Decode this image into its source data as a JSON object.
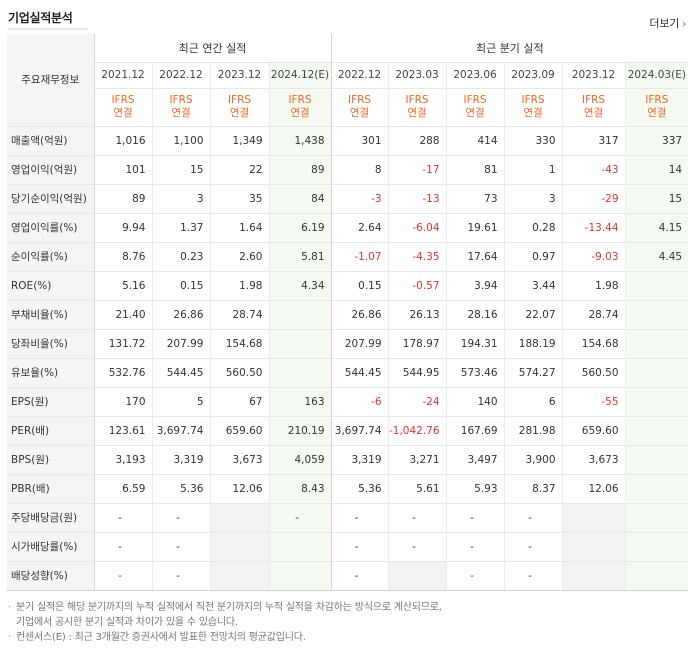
{
  "header": {
    "title": "기업실적분석",
    "more_label": "더보기"
  },
  "table": {
    "corner_label": "주요재무정보",
    "group_annual": "최근 연간 실적",
    "group_quarter": "최근 분기 실적",
    "periods": [
      "2021.12",
      "2022.12",
      "2023.12",
      "2024.12(E)",
      "2022.12",
      "2023.03",
      "2023.06",
      "2023.09",
      "2023.12",
      "2024.03(E)"
    ],
    "ifrs_top": "IFRS",
    "ifrs_bottom": "연결",
    "rows": [
      {
        "label": "매출액(억원)",
        "values": [
          "1,016",
          "1,100",
          "1,349",
          "1,438",
          "301",
          "288",
          "414",
          "330",
          "317",
          "337"
        ]
      },
      {
        "label": "영업이익(억원)",
        "values": [
          "101",
          "15",
          "22",
          "89",
          "8",
          "-17",
          "81",
          "1",
          "-43",
          "14"
        ]
      },
      {
        "label": "당기순이익(억원)",
        "values": [
          "89",
          "3",
          "35",
          "84",
          "-3",
          "-13",
          "73",
          "3",
          "-29",
          "15"
        ]
      },
      {
        "label": "영업이익률(%)",
        "values": [
          "9.94",
          "1.37",
          "1.64",
          "6.19",
          "2.64",
          "-6.04",
          "19.61",
          "0.28",
          "-13.44",
          "4.15"
        ]
      },
      {
        "label": "순이익률(%)",
        "values": [
          "8.76",
          "0.23",
          "2.60",
          "5.81",
          "-1.07",
          "-4.35",
          "17.64",
          "0.97",
          "-9.03",
          "4.45"
        ]
      },
      {
        "label": "ROE(%)",
        "values": [
          "5.16",
          "0.15",
          "1.98",
          "4.34",
          "0.15",
          "-0.57",
          "3.94",
          "3.44",
          "1.98",
          ""
        ]
      },
      {
        "label": "부채비율(%)",
        "values": [
          "21.40",
          "26.86",
          "28.74",
          "",
          "26.86",
          "26.13",
          "28.16",
          "22.07",
          "28.74",
          ""
        ]
      },
      {
        "label": "당좌비율(%)",
        "values": [
          "131.72",
          "207.99",
          "154.68",
          "",
          "207.99",
          "178.97",
          "194.31",
          "188.19",
          "154.68",
          ""
        ]
      },
      {
        "label": "유보율(%)",
        "values": [
          "532.76",
          "544.45",
          "560.50",
          "",
          "544.45",
          "544.95",
          "573.46",
          "574.27",
          "560.50",
          ""
        ]
      },
      {
        "label": "EPS(원)",
        "values": [
          "170",
          "5",
          "67",
          "163",
          "-6",
          "-24",
          "140",
          "6",
          "-55",
          ""
        ]
      },
      {
        "label": "PER(배)",
        "values": [
          "123.61",
          "3,697.74",
          "659.60",
          "210.19",
          "3,697.74",
          "-1,042.76",
          "167.69",
          "281.98",
          "659.60",
          ""
        ]
      },
      {
        "label": "BPS(원)",
        "values": [
          "3,193",
          "3,319",
          "3,673",
          "4,059",
          "3,319",
          "3,271",
          "3,497",
          "3,900",
          "3,673",
          ""
        ]
      },
      {
        "label": "PBR(배)",
        "values": [
          "6.59",
          "5.36",
          "12.06",
          "8.43",
          "5.36",
          "5.61",
          "5.93",
          "8.37",
          "12.06",
          ""
        ]
      },
      {
        "label": "주당배당금(원)",
        "values": [
          "-",
          "-",
          "",
          "-",
          "-",
          "-",
          "-",
          "-",
          "",
          ""
        ]
      },
      {
        "label": "시가배당률(%)",
        "values": [
          "-",
          "-",
          "",
          "",
          "-",
          "-",
          "-",
          "-",
          "",
          ""
        ]
      },
      {
        "label": "배당성향(%)",
        "values": [
          "-",
          "-",
          "",
          "",
          "-",
          "",
          "-",
          "-",
          "",
          ""
        ]
      }
    ]
  },
  "notes": {
    "line1": "분기 실적은 해당 분기까지의 누적 실적에서 직전 분기까지의 누적 실적을 차감하는 방식으로 계산되므로,",
    "line2": "기업에서 공시한 분기 실적과 차이가 있을 수 있습니다.",
    "line3": "컨센서스(E) : 최근 3개월간 증권사에서 발표한 전망치의 평균값입니다."
  }
}
